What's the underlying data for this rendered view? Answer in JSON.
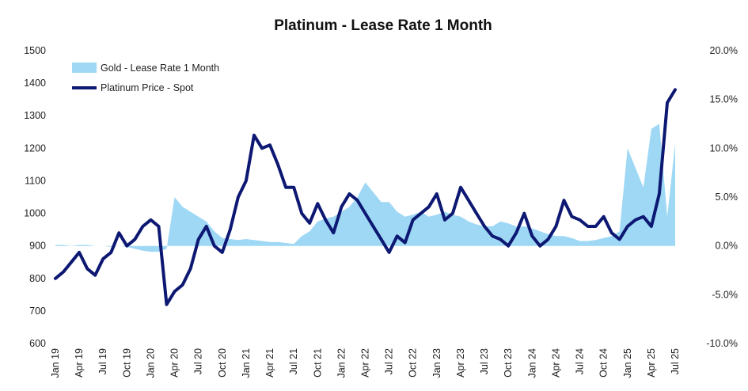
{
  "chart_data": {
    "type": "line",
    "title": "Platinum - Lease Rate 1 Month",
    "legend_placement": "top-left",
    "colors": {
      "area": "#9fd8f5",
      "line": "#0d1873"
    },
    "y_left": {
      "ylim": [
        600,
        1500
      ],
      "ticks": [
        "600",
        "700",
        "800",
        "900",
        "1000",
        "1100",
        "1200",
        "1300",
        "1400",
        "1500"
      ]
    },
    "y_right": {
      "ylim": [
        -10,
        20
      ],
      "ticks": [
        "-10.0%",
        "-5.0%",
        "0.0%",
        "5.0%",
        "10.0%",
        "15.0%",
        "20.0%"
      ]
    },
    "x_ticks": [
      "Jan 19",
      "Apr 19",
      "Jul 19",
      "Oct 19",
      "Jan 20",
      "Apr 20",
      "Jul 20",
      "Oct 20",
      "Jan 21",
      "Apr 21",
      "Jul 21",
      "Oct 21",
      "Jan 22",
      "Apr 22",
      "Jul 22",
      "Oct 22",
      "Jan 23",
      "Apr 23",
      "Jul 23",
      "Oct 23",
      "Jan 24",
      "Apr 24",
      "Jul 24",
      "Oct 24",
      "Jan 25",
      "Apr 25",
      "Jul 25"
    ],
    "series": [
      {
        "name": "Gold - Lease Rate 1 Month",
        "kind": "area",
        "axis": "right",
        "x": [
          "2019-01",
          "2019-02",
          "2019-03",
          "2019-04",
          "2019-05",
          "2019-06",
          "2019-07",
          "2019-08",
          "2019-09",
          "2019-10",
          "2019-11",
          "2019-12",
          "2020-01",
          "2020-02",
          "2020-03",
          "2020-04",
          "2020-05",
          "2020-06",
          "2020-07",
          "2020-08",
          "2020-09",
          "2020-10",
          "2020-11",
          "2020-12",
          "2021-01",
          "2021-02",
          "2021-03",
          "2021-04",
          "2021-05",
          "2021-06",
          "2021-07",
          "2021-08",
          "2021-09",
          "2021-10",
          "2021-11",
          "2021-12",
          "2022-01",
          "2022-02",
          "2022-03",
          "2022-04",
          "2022-05",
          "2022-06",
          "2022-07",
          "2022-08",
          "2022-09",
          "2022-10",
          "2022-11",
          "2022-12",
          "2023-01",
          "2023-02",
          "2023-03",
          "2023-04",
          "2023-05",
          "2023-06",
          "2023-07",
          "2023-08",
          "2023-09",
          "2023-10",
          "2023-11",
          "2023-12",
          "2024-01",
          "2024-02",
          "2024-03",
          "2024-04",
          "2024-05",
          "2024-06",
          "2024-07",
          "2024-08",
          "2024-09",
          "2024-10",
          "2024-11",
          "2024-12",
          "2025-01",
          "2025-02",
          "2025-03",
          "2025-04",
          "2025-05",
          "2025-06",
          "2025-07"
        ],
        "values": [
          0.1,
          0.1,
          0.0,
          0.1,
          0.1,
          0.0,
          0.0,
          -0.1,
          0.0,
          -0.1,
          -0.3,
          -0.5,
          -0.6,
          -0.6,
          -0.3,
          5.0,
          4.0,
          3.5,
          3.0,
          2.5,
          1.5,
          0.8,
          0.7,
          0.6,
          0.7,
          0.6,
          0.5,
          0.4,
          0.4,
          0.3,
          0.2,
          1.0,
          1.5,
          2.5,
          2.8,
          3.0,
          3.5,
          4.0,
          5.0,
          6.5,
          5.5,
          4.5,
          4.5,
          3.5,
          3.0,
          3.2,
          3.5,
          3.0,
          3.2,
          3.5,
          3.2,
          3.0,
          2.5,
          2.2,
          2.0,
          2.0,
          2.5,
          2.3,
          2.0,
          2.0,
          1.8,
          1.5,
          1.2,
          1.0,
          1.0,
          0.8,
          0.5,
          0.5,
          0.6,
          0.8,
          1.0,
          1.5,
          10.0,
          8.0,
          6.0,
          12.0,
          12.5,
          3.0,
          10.5
        ]
      },
      {
        "name": "Platinum Price - Spot",
        "kind": "line",
        "axis": "left",
        "x": [
          "2019-01",
          "2019-02",
          "2019-03",
          "2019-04",
          "2019-05",
          "2019-06",
          "2019-07",
          "2019-08",
          "2019-09",
          "2019-10",
          "2019-11",
          "2019-12",
          "2020-01",
          "2020-02",
          "2020-03",
          "2020-04",
          "2020-05",
          "2020-06",
          "2020-07",
          "2020-08",
          "2020-09",
          "2020-10",
          "2020-11",
          "2020-12",
          "2021-01",
          "2021-02",
          "2021-03",
          "2021-04",
          "2021-05",
          "2021-06",
          "2021-07",
          "2021-08",
          "2021-09",
          "2021-10",
          "2021-11",
          "2021-12",
          "2022-01",
          "2022-02",
          "2022-03",
          "2022-04",
          "2022-05",
          "2022-06",
          "2022-07",
          "2022-08",
          "2022-09",
          "2022-10",
          "2022-11",
          "2022-12",
          "2023-01",
          "2023-02",
          "2023-03",
          "2023-04",
          "2023-05",
          "2023-06",
          "2023-07",
          "2023-08",
          "2023-09",
          "2023-10",
          "2023-11",
          "2023-12",
          "2024-01",
          "2024-02",
          "2024-03",
          "2024-04",
          "2024-05",
          "2024-06",
          "2024-07",
          "2024-08",
          "2024-09",
          "2024-10",
          "2024-11",
          "2024-12",
          "2025-01",
          "2025-02",
          "2025-03",
          "2025-04",
          "2025-05",
          "2025-06",
          "2025-07"
        ],
        "values": [
          800,
          820,
          850,
          880,
          830,
          810,
          860,
          880,
          940,
          900,
          920,
          960,
          980,
          960,
          720,
          760,
          780,
          830,
          920,
          960,
          900,
          880,
          950,
          1050,
          1100,
          1240,
          1200,
          1210,
          1150,
          1080,
          1080,
          1000,
          970,
          1030,
          980,
          940,
          1020,
          1060,
          1040,
          1000,
          960,
          920,
          880,
          930,
          910,
          980,
          1000,
          1020,
          1060,
          980,
          1000,
          1080,
          1040,
          1000,
          960,
          930,
          920,
          900,
          940,
          1000,
          930,
          900,
          920,
          960,
          1040,
          990,
          980,
          960,
          960,
          990,
          940,
          920,
          960,
          980,
          990,
          960,
          1060,
          1340,
          1380
        ]
      }
    ],
    "legend": [
      "Gold - Lease Rate 1 Month",
      "Platinum Price - Spot"
    ]
  }
}
